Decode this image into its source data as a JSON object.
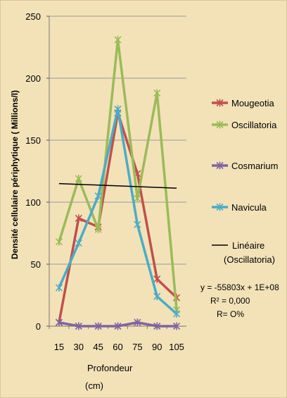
{
  "chart_data": {
    "type": "line",
    "x": [
      15,
      30,
      45,
      60,
      75,
      90,
      105
    ],
    "ylim": [
      0,
      250
    ],
    "yticks": [
      0,
      50,
      100,
      150,
      200,
      250
    ],
    "ylabel": "Densité cellulaire périphytique ( Millions/l)",
    "xlabel_line1": "Profondeur",
    "xlabel_line2": "(cm)",
    "grid": "horizontal",
    "legend_position": "right",
    "series": [
      {
        "name": "Mougeotia",
        "color": "#c0504d",
        "values": [
          3,
          87,
          80,
          172,
          123,
          38,
          23
        ]
      },
      {
        "name": "Oscillatoria",
        "color": "#9bbb59",
        "values": [
          68,
          119,
          78,
          231,
          103,
          188,
          13
        ]
      },
      {
        "name": "Cosmarium",
        "color": "#8064a2",
        "values": [
          3,
          0,
          0,
          0,
          3,
          0,
          0
        ]
      },
      {
        "name": "Navicula",
        "color": "#4bacc6",
        "values": [
          31,
          67,
          105,
          175,
          82,
          24,
          10
        ]
      }
    ],
    "trendline": {
      "name_line1": "Linéaire",
      "name_line2": "(Oscillatoria)",
      "color": "#000000",
      "values": [
        115,
        114.4,
        113.8,
        113.1,
        112.5,
        111.9,
        111.3
      ]
    },
    "annotation": {
      "line1": "y = -55803x + 1E+08",
      "line2": "R² = 0,000",
      "line3": "R= O%"
    }
  }
}
